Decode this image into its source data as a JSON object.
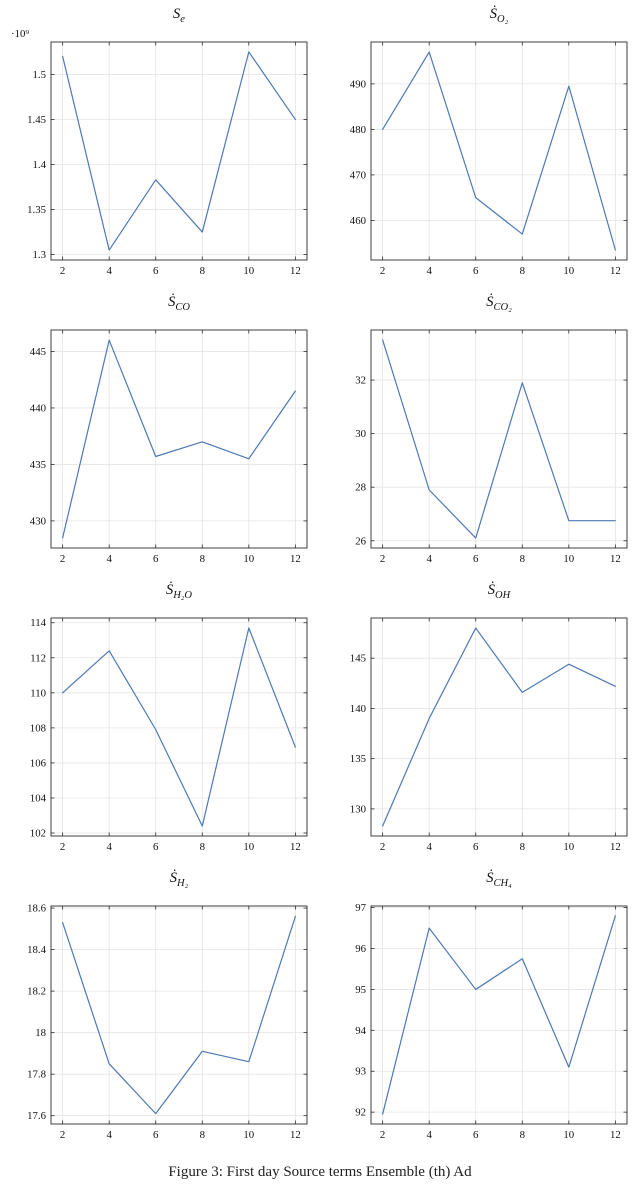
{
  "colors": {
    "line": "#4d79b5",
    "grid": "#e4e4e4",
    "axis": "#2b2b2b",
    "tick_text": "#111111"
  },
  "caption": "Figure 3: First day Source terms Ensemble (th) Ad",
  "chart_data": [
    {
      "type": "line",
      "title_base": "S",
      "title_sub": "e",
      "y_offset_label": "·10⁹",
      "x": [
        2,
        4,
        6,
        8,
        10,
        12
      ],
      "values": [
        1.52,
        1.305,
        1.383,
        1.325,
        1.525,
        1.45
      ],
      "xlim": [
        1.5,
        12.5
      ],
      "ylim": [
        1.294,
        1.536
      ],
      "xticks": [
        2,
        4,
        6,
        8,
        10,
        12
      ],
      "xtick_labels": [
        "2",
        "4",
        "6",
        "8",
        "10",
        "12"
      ],
      "yticks": [
        1.3,
        1.35,
        1.4,
        1.45,
        1.5
      ],
      "ytick_labels": [
        "1.3",
        "1.35",
        "1.4",
        "1.45",
        "1.5"
      ],
      "grid": true,
      "legend": null
    },
    {
      "type": "line",
      "title_base": "Ṡ",
      "title_sub": "O₂",
      "y_offset_label": null,
      "x": [
        2,
        4,
        6,
        8,
        10,
        12
      ],
      "values": [
        480,
        497,
        465,
        457,
        489.5,
        453.5
      ],
      "xlim": [
        1.5,
        12.5
      ],
      "ylim": [
        451.3,
        499.2
      ],
      "xticks": [
        2,
        4,
        6,
        8,
        10,
        12
      ],
      "xtick_labels": [
        "2",
        "4",
        "6",
        "8",
        "10",
        "12"
      ],
      "yticks": [
        460,
        470,
        480,
        490
      ],
      "ytick_labels": [
        "460",
        "470",
        "480",
        "490"
      ],
      "grid": true,
      "legend": null
    },
    {
      "type": "line",
      "title_base": "Ṡ",
      "title_sub": "CO",
      "y_offset_label": null,
      "x": [
        2,
        4,
        6,
        8,
        10,
        12
      ],
      "values": [
        428.5,
        446,
        435.7,
        437,
        435.5,
        441.5
      ],
      "xlim": [
        1.5,
        12.5
      ],
      "ylim": [
        427.6,
        446.9
      ],
      "xticks": [
        2,
        4,
        6,
        8,
        10,
        12
      ],
      "xtick_labels": [
        "2",
        "4",
        "6",
        "8",
        "10",
        "12"
      ],
      "yticks": [
        430,
        435,
        440,
        445
      ],
      "ytick_labels": [
        "430",
        "435",
        "440",
        "445"
      ],
      "grid": true,
      "legend": null
    },
    {
      "type": "line",
      "title_base": "Ṡ",
      "title_sub": "CO₂",
      "y_offset_label": null,
      "x": [
        2,
        4,
        6,
        8,
        10,
        12
      ],
      "values": [
        33.5,
        27.9,
        26.1,
        31.9,
        26.75,
        26.75
      ],
      "xlim": [
        1.5,
        12.5
      ],
      "ylim": [
        25.73,
        33.87
      ],
      "xticks": [
        2,
        4,
        6,
        8,
        10,
        12
      ],
      "xtick_labels": [
        "2",
        "4",
        "6",
        "8",
        "10",
        "12"
      ],
      "yticks": [
        26,
        28,
        30,
        32
      ],
      "ytick_labels": [
        "26",
        "28",
        "30",
        "32"
      ],
      "grid": true,
      "legend": null
    },
    {
      "type": "line",
      "title_base": "Ṡ",
      "title_sub": "H₂O",
      "y_offset_label": null,
      "x": [
        2,
        4,
        6,
        8,
        10,
        12
      ],
      "values": [
        110,
        112.4,
        107.9,
        102.4,
        113.7,
        106.9
      ],
      "xlim": [
        1.5,
        12.5
      ],
      "ylim": [
        101.83,
        114.27
      ],
      "xticks": [
        2,
        4,
        6,
        8,
        10,
        12
      ],
      "xtick_labels": [
        "2",
        "4",
        "6",
        "8",
        "10",
        "12"
      ],
      "yticks": [
        102,
        104,
        106,
        108,
        110,
        112,
        114
      ],
      "ytick_labels": [
        "102",
        "104",
        "106",
        "108",
        "110",
        "112",
        "114"
      ],
      "grid": true,
      "legend": null
    },
    {
      "type": "line",
      "title_base": "Ṡ",
      "title_sub": "OH",
      "y_offset_label": null,
      "x": [
        2,
        4,
        6,
        8,
        10,
        12
      ],
      "values": [
        128.3,
        139,
        148,
        141.6,
        144.4,
        142.2
      ],
      "xlim": [
        1.5,
        12.5
      ],
      "ylim": [
        127.3,
        149
      ],
      "xticks": [
        2,
        4,
        6,
        8,
        10,
        12
      ],
      "xtick_labels": [
        "2",
        "4",
        "6",
        "8",
        "10",
        "12"
      ],
      "yticks": [
        130,
        135,
        140,
        145
      ],
      "ytick_labels": [
        "130",
        "135",
        "140",
        "145"
      ],
      "grid": true,
      "legend": null
    },
    {
      "type": "line",
      "title_base": "Ṡ",
      "title_sub": "H₂",
      "y_offset_label": null,
      "x": [
        2,
        4,
        6,
        8,
        10,
        12
      ],
      "values": [
        18.53,
        17.85,
        17.61,
        17.91,
        17.86,
        18.56
      ],
      "xlim": [
        1.5,
        12.5
      ],
      "ylim": [
        17.56,
        18.61
      ],
      "xticks": [
        2,
        4,
        6,
        8,
        10,
        12
      ],
      "xtick_labels": [
        "2",
        "4",
        "6",
        "8",
        "10",
        "12"
      ],
      "yticks": [
        17.6,
        17.8,
        18,
        18.2,
        18.4,
        18.6
      ],
      "ytick_labels": [
        "17.6",
        "17.8",
        "18",
        "18.2",
        "18.4",
        "18.6"
      ],
      "grid": true,
      "legend": null
    },
    {
      "type": "line",
      "title_base": "Ṡ",
      "title_sub": "CH₄",
      "y_offset_label": null,
      "x": [
        2,
        4,
        6,
        8,
        10,
        12
      ],
      "values": [
        91.95,
        96.5,
        95.0,
        95.75,
        93.1,
        96.8
      ],
      "xlim": [
        1.5,
        12.5
      ],
      "ylim": [
        91.71,
        97.04
      ],
      "xticks": [
        2,
        4,
        6,
        8,
        10,
        12
      ],
      "xtick_labels": [
        "2",
        "4",
        "6",
        "8",
        "10",
        "12"
      ],
      "yticks": [
        92,
        93,
        94,
        95,
        96,
        97
      ],
      "ytick_labels": [
        "92",
        "93",
        "94",
        "95",
        "96",
        "97"
      ],
      "grid": true,
      "legend": null
    }
  ]
}
